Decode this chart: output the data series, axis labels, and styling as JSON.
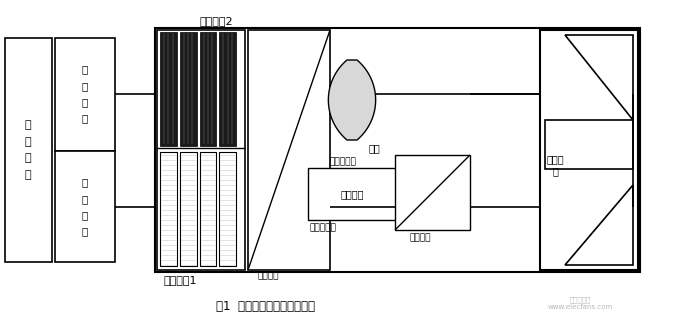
{
  "fig_width": 6.73,
  "fig_height": 3.2,
  "dpi": 100,
  "bg_color": "#ffffff",
  "title": "图1  无靶板消光比测试原理图",
  "label_attenuator2": "衰减片组2",
  "label_attenuator1": "衰减片组1",
  "label_detector": "被\n检\n仪\n器",
  "label_receiver": "接\n收\n系\n统",
  "label_transmitter": "发\n射\n系\n统",
  "label_lens": "物镇",
  "label_laser_emitter": "激光发光管",
  "label_circuit": "电路处理",
  "label_laser_receiver": "激光接收管",
  "label_beamsplitter": "分光棱镜",
  "label_aperture": "小孔光阀",
  "label_mirror": "折转棱\n镜"
}
